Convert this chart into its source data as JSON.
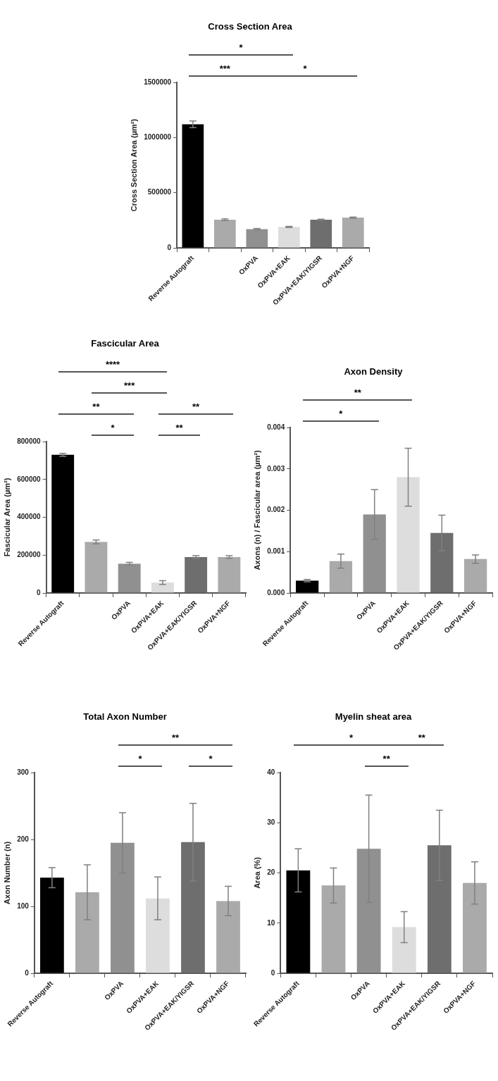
{
  "chart_data": [
    {
      "type": "bar",
      "title": "Cross Section Area",
      "ylabel": "Cross Section Area (µm²)",
      "categories": [
        "Reverse Autograft",
        null,
        "OxPVA",
        "OxPVA+EAK",
        "OxPVA+EAK/YIGSR",
        "OxPVA+NGF"
      ],
      "values": [
        1120000,
        255000,
        170000,
        190000,
        255000,
        275000
      ],
      "errors": [
        30000,
        8000,
        5000,
        5000,
        5000,
        5000
      ],
      "colors": [
        "#000000",
        "#aaaaaa",
        "#909090",
        "#dddddd",
        "#6e6e6e",
        "#aaaaaa"
      ],
      "ylim": [
        0,
        1500000
      ],
      "yticks": [
        0,
        500000,
        1000000,
        1500000
      ],
      "annotations": [
        "*",
        "***",
        "*"
      ]
    },
    {
      "type": "bar",
      "title": "Fascicular Area",
      "ylabel": "Fascicular Area (µm²)",
      "categories": [
        "Reverse Autograft",
        null,
        "OxPVA",
        "OxPVA+EAK",
        "OxPVA+EAK/YIGSR",
        "OxPVA+NGF"
      ],
      "values": [
        730000,
        270000,
        155000,
        55000,
        190000,
        190000
      ],
      "errors": [
        8000,
        10000,
        7000,
        10000,
        7000,
        7000
      ],
      "colors": [
        "#000000",
        "#aaaaaa",
        "#909090",
        "#dddddd",
        "#6e6e6e",
        "#aaaaaa"
      ],
      "ylim": [
        0,
        800000
      ],
      "yticks": [
        0,
        200000,
        400000,
        600000,
        800000
      ],
      "annotations": [
        "****",
        "***",
        "**",
        "**",
        "*",
        "**"
      ]
    },
    {
      "type": "bar",
      "title": "Axon Density",
      "ylabel": "Axons (n) / Fascicular area (µm²)",
      "categories": [
        "Reverse Autograft",
        null,
        "OxPVA",
        "OxPVA+EAK",
        "OxPVA+EAK/YIGSR",
        "OxPVA+NGF"
      ],
      "values": [
        0.0003,
        0.00077,
        0.0019,
        0.0028,
        0.00145,
        0.00082
      ],
      "errors": [
        3e-05,
        0.00017,
        0.0006,
        0.0007,
        0.00043,
        0.0001
      ],
      "colors": [
        "#000000",
        "#aaaaaa",
        "#909090",
        "#dddddd",
        "#6e6e6e",
        "#aaaaaa"
      ],
      "ylim": [
        0,
        0.004
      ],
      "yticks": [
        {
          "value": 0,
          "label": "0.000"
        },
        {
          "value": 0.001,
          "label": "0.001"
        },
        {
          "value": 0.002,
          "label": "0.002"
        },
        {
          "value": 0.003,
          "label": "0.003"
        },
        {
          "value": 0.004,
          "label": "0.004"
        }
      ],
      "annotations": [
        "**",
        "*"
      ]
    },
    {
      "type": "bar",
      "title": "Total Axon Number",
      "ylabel": "Axon Number (n)",
      "categories": [
        "Reverse Autograft",
        null,
        "OxPVA",
        "OxPVA+EAK",
        "OxPVA+EAK/YIGSR",
        "OxPVA+NGF"
      ],
      "values": [
        143,
        121,
        195,
        112,
        196,
        108
      ],
      "errors": [
        15,
        41,
        45,
        32,
        58,
        22
      ],
      "colors": [
        "#000000",
        "#aaaaaa",
        "#909090",
        "#dddddd",
        "#6e6e6e",
        "#aaaaaa"
      ],
      "ylim": [
        0,
        300
      ],
      "yticks": [
        0,
        100,
        200,
        300
      ],
      "annotations": [
        "**",
        "*",
        "*"
      ]
    },
    {
      "type": "bar",
      "title": "Myelin sheat area",
      "ylabel": "Area (%)",
      "categories": [
        "Reverse Autograft",
        null,
        "OxPVA",
        "OxPVA+EAK",
        "OxPVA+EAK/YIGSR",
        "OxPVA+NGF"
      ],
      "values": [
        20.5,
        17.5,
        24.8,
        9.2,
        25.5,
        18
      ],
      "errors": [
        4.3,
        3.5,
        10.7,
        3.1,
        7,
        4.2
      ],
      "colors": [
        "#000000",
        "#aaaaaa",
        "#909090",
        "#dddddd",
        "#6e6e6e",
        "#aaaaaa"
      ],
      "ylim": [
        0,
        40
      ],
      "yticks": [
        0,
        10,
        20,
        30,
        40
      ],
      "annotations": [
        "*",
        "**",
        "**"
      ]
    }
  ]
}
